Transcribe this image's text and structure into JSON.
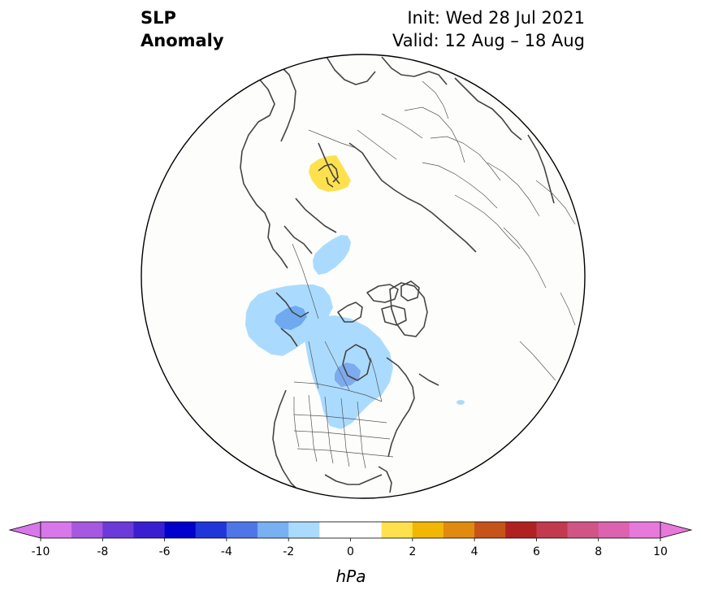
{
  "header": {
    "variable": "SLP",
    "subtitle": "Anomaly",
    "init": "Init: Wed 28 Jul 2021",
    "valid": "Valid: 12 Aug – 18 Aug"
  },
  "map": {
    "projection": "north-polar-stereographic",
    "background": "#fdfdfb",
    "anomaly_regions": [
      {
        "name": "russia-positive",
        "level": 1,
        "color": "#ffe14d"
      },
      {
        "name": "siberia-negative",
        "level": -1,
        "color": "#aadbff"
      },
      {
        "name": "alaska-negative",
        "level": -1,
        "color": "#aadbff"
      },
      {
        "name": "alaska-core",
        "level": -3,
        "color": "#6fa9f0"
      },
      {
        "name": "canada-negative",
        "level": -1,
        "color": "#aadbff"
      },
      {
        "name": "canada-core",
        "level": -3,
        "color": "#7eaaee"
      },
      {
        "name": "atlantic-spot",
        "level": -1,
        "color": "#aadbff"
      }
    ]
  },
  "colorbar": {
    "label": "hPa",
    "ticks": [
      "-10",
      "-8",
      "-6",
      "-4",
      "-2",
      "0",
      "2",
      "4",
      "6",
      "8",
      "10"
    ],
    "colors": [
      "#d877e9",
      "#a658e0",
      "#6c3ad8",
      "#3a1fd0",
      "#0000cc",
      "#2136d8",
      "#4f76e6",
      "#78b0f2",
      "#aadbff",
      "#ffffff",
      "#ffffff",
      "#fee14d",
      "#f2b705",
      "#e08a10",
      "#c65319",
      "#b02222",
      "#c23a4e",
      "#d05587",
      "#db63b0",
      "#e679da"
    ],
    "under_color": "#d877e9",
    "over_color": "#e679da"
  }
}
